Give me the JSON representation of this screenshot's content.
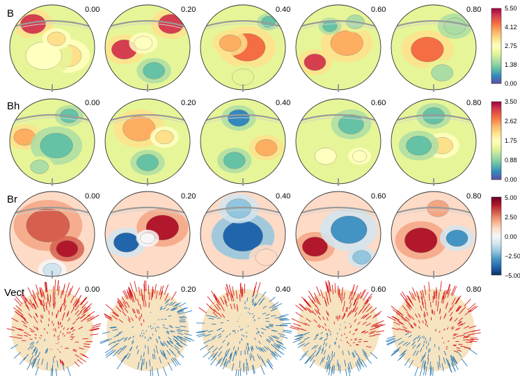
{
  "figure": {
    "rows": [
      {
        "label": "B",
        "scheme": "spectral"
      },
      {
        "label": "Bh",
        "scheme": "spectral"
      },
      {
        "label": "Br",
        "scheme": "diverging"
      },
      {
        "label": "Vect",
        "scheme": "vector"
      }
    ],
    "phases": [
      "0.00",
      "0.20",
      "0.40",
      "0.60",
      "0.80"
    ]
  },
  "colorbars": [
    {
      "row": "B",
      "ticks": [
        "5.50",
        "4.12",
        "2.75",
        "1.38",
        "0.00"
      ]
    },
    {
      "row": "Bh",
      "ticks": [
        "3.50",
        "2.62",
        "1.75",
        "0.88",
        "0.00"
      ]
    },
    {
      "row": "Br",
      "ticks": [
        "5.00",
        "2.50",
        "0.00",
        "−2.50",
        "−5.00"
      ]
    }
  ],
  "colors": {
    "spectral": [
      "#5e4fa2",
      "#3288bd",
      "#66c2a5",
      "#abdda4",
      "#e6f598",
      "#ffffbf",
      "#fee08b",
      "#fdae61",
      "#f46d43",
      "#d53e4f",
      "#9e0142"
    ],
    "diverging": [
      "#053061",
      "#2166ac",
      "#4393c3",
      "#92c5de",
      "#d1e5f0",
      "#f7f7f7",
      "#fddbc7",
      "#f4a582",
      "#d6604d",
      "#b2182b",
      "#67001f"
    ],
    "vector_positive": "#d7191c",
    "vector_negative": "#2c7bb6",
    "sphere_face": "#f6e3c0",
    "equator": "#9a9a9a"
  }
}
